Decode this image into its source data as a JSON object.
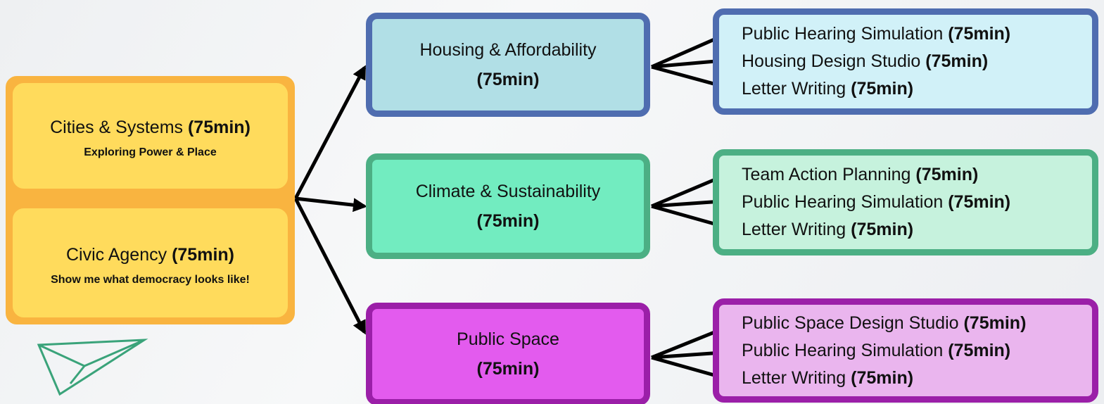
{
  "intro": [
    {
      "title": "Cities & Systems",
      "duration": "(75min)",
      "subtitle": "Exploring Power & Place"
    },
    {
      "title": "Civic Agency",
      "duration": "(75min)",
      "subtitle": "Show me what democracy looks like!"
    }
  ],
  "tracks": [
    {
      "title": "Housing & Affordability",
      "duration": "(75min)",
      "activities": [
        {
          "name": "Public Hearing Simulation",
          "duration": "(75min)"
        },
        {
          "name": "Housing Design Studio",
          "duration": "(75min)"
        },
        {
          "name": "Letter Writing",
          "duration": "(75min)"
        }
      ]
    },
    {
      "title": "Climate & Sustainability",
      "duration": "(75min)",
      "activities": [
        {
          "name": "Team Action Planning",
          "duration": "(75min)"
        },
        {
          "name": "Public Hearing Simulation",
          "duration": "(75min)"
        },
        {
          "name": "Letter Writing",
          "duration": "(75min)"
        }
      ]
    },
    {
      "title": "Public Space",
      "duration": "(75min)",
      "activities": [
        {
          "name": "Public Space Design Studio",
          "duration": "(75min)"
        },
        {
          "name": "Public Hearing Simulation",
          "duration": "(75min)"
        },
        {
          "name": "Letter Writing",
          "duration": "(75min)"
        }
      ]
    }
  ]
}
